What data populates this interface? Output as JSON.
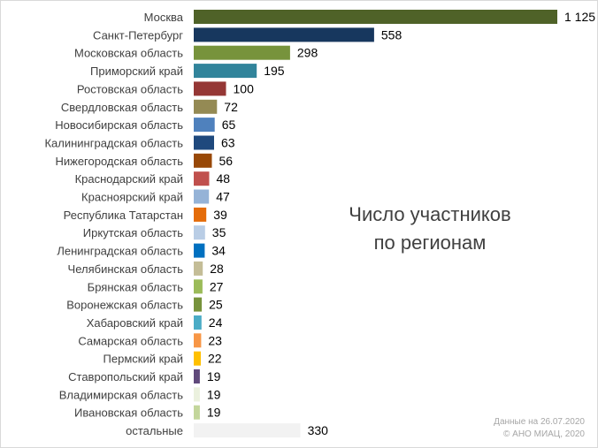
{
  "chart_data": {
    "type": "bar",
    "orientation": "horizontal",
    "title_lines": [
      "Число участников",
      "по регионам"
    ],
    "categories": [
      "Москва",
      "Санкт-Петербург",
      "Московская область",
      "Приморский край",
      "Ростовская область",
      "Свердловская область",
      "Новосибирская область",
      "Калининградская область",
      "Нижегородская область",
      "Краснодарский край",
      "Красноярский край",
      "Республика Татарстан",
      "Иркутская область",
      "Ленинградская область",
      "Челябинская область",
      "Брянская область",
      "Воронежская область",
      "Хабаровский край",
      "Самарская область",
      "Пермский край",
      "Ставропольский край",
      "Владимирская область",
      "Ивановская область",
      "остальные"
    ],
    "values": [
      1125,
      558,
      298,
      195,
      100,
      72,
      65,
      63,
      56,
      48,
      47,
      39,
      35,
      34,
      28,
      27,
      25,
      24,
      23,
      22,
      19,
      19,
      19,
      330
    ],
    "value_labels": [
      "1 125",
      "558",
      "298",
      "195",
      "100",
      "72",
      "65",
      "63",
      "56",
      "48",
      "47",
      "39",
      "35",
      "34",
      "28",
      "27",
      "25",
      "24",
      "23",
      "22",
      "19",
      "19",
      "19",
      "330"
    ],
    "colors": [
      "#4f6228",
      "#17375e",
      "#77933c",
      "#31849b",
      "#953735",
      "#948a54",
      "#4f81bd",
      "#1f497d",
      "#984807",
      "#c0504d",
      "#95b3d7",
      "#e46c0a",
      "#b9cde5",
      "#0070c0",
      "#c4bd97",
      "#9bbb59",
      "#77933c",
      "#4bacc6",
      "#f79646",
      "#ffc000",
      "#604a7b",
      "#ebf1de",
      "#c3d69b",
      "#f2f2f2"
    ],
    "xlim": [
      0,
      1125
    ],
    "grid": false,
    "legend": "none"
  },
  "footnote": {
    "line1": "Данные на 26.07.2020",
    "line2": "© АНО МИАЦ, 2020"
  }
}
